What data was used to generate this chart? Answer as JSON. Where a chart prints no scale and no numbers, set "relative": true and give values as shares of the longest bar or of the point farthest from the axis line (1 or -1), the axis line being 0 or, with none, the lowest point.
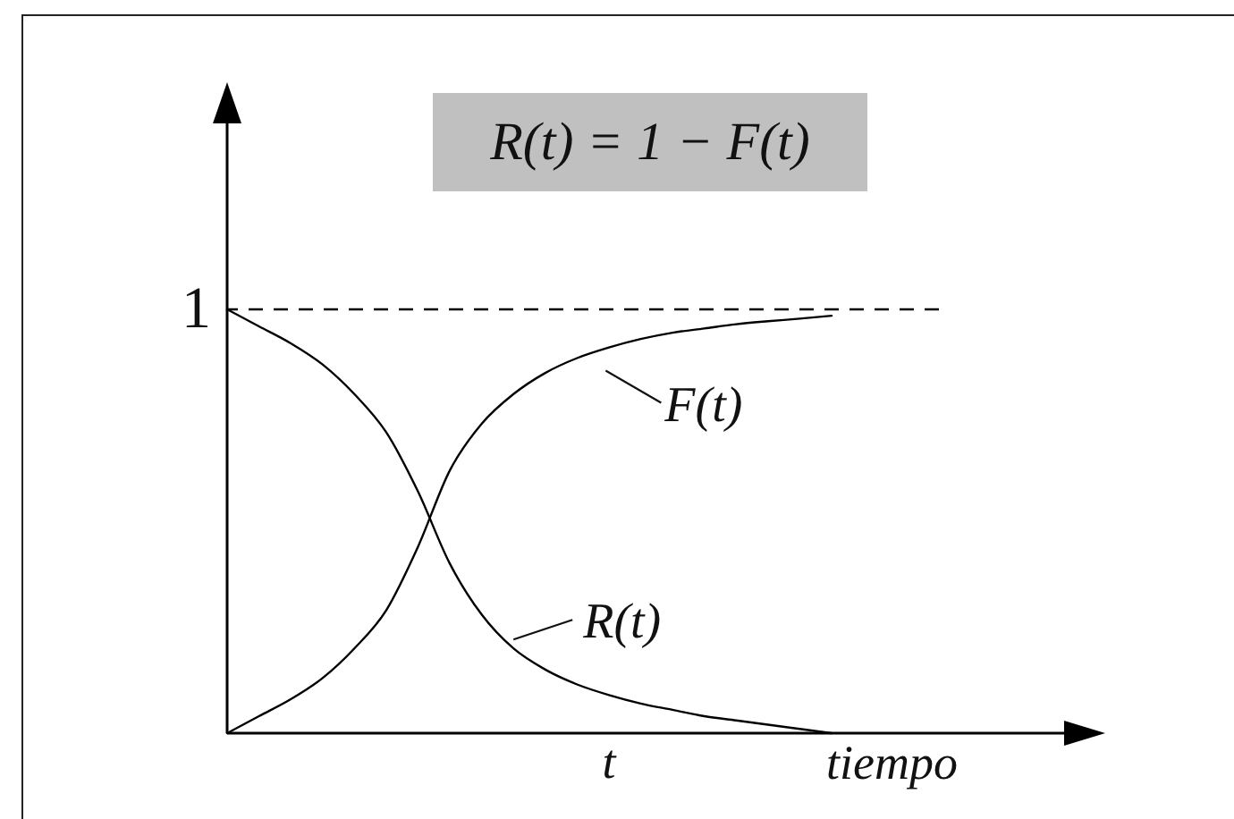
{
  "chart_data": {
    "type": "line",
    "title": "R(t) = 1 − F(t)",
    "xlabel": "tiempo",
    "categories": [
      null,
      null,
      null,
      null,
      null,
      null,
      null,
      null,
      null,
      null,
      null,
      null,
      null,
      null,
      null,
      null,
      null,
      null,
      null,
      null
    ],
    "relative": true,
    "series": [
      {
        "name": "F(t)",
        "color": "#000000",
        "values": [
          0,
          0.04,
          0.08,
          0.13,
          0.2,
          0.29,
          0.44,
          0.62,
          0.73,
          0.8,
          0.85,
          0.885,
          0.91,
          0.93,
          0.945,
          0.955,
          0.965,
          0.972,
          0.978,
          0.985
        ]
      },
      {
        "name": "R(t)",
        "color": "#000000",
        "values": [
          1,
          0.96,
          0.92,
          0.87,
          0.8,
          0.71,
          0.57,
          0.4,
          0.28,
          0.2,
          0.15,
          0.115,
          0.09,
          0.07,
          0.055,
          0.04,
          0.03,
          0.02,
          0.01,
          0
        ]
      }
    ],
    "ref_lines": [
      {
        "axis": "y",
        "value": 1,
        "label": "1",
        "line_style": "dashed",
        "color": "#000000"
      }
    ],
    "annotations": [
      "t"
    ]
  }
}
